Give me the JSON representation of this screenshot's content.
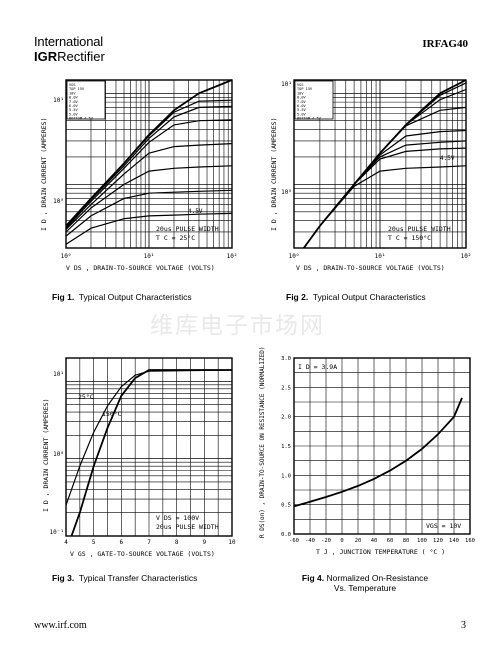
{
  "header": {
    "logo_line1": "International",
    "logo_line2_bold": "IGR",
    "logo_line2": "Rectifier",
    "part_number": "IRFAG40"
  },
  "watermark": "维库电子市场网",
  "footer": {
    "url": "www.irf.com",
    "page": "3"
  },
  "figures": [
    {
      "num": "Fig 1.",
      "caption": "Typical Output Characteristics",
      "ylabel": "I D , DRAIN CURRENT (AMPERES)",
      "xlabel": "V DS , DRAIN-TO-SOURCE VOLTAGE (VOLTS)",
      "vgs_legend": [
        "VGS",
        "TOP 15V",
        "10V",
        "8.0V",
        "7.0V",
        "6.0V",
        "5.5V",
        "5.0V",
        "BOTTOM 4.5V"
      ],
      "curve_label": "4.5V",
      "note1": "20us PULSE WIDTH",
      "note2": "T C = 25°C",
      "ticks_x": [
        "10⁰",
        "10¹",
        "10²"
      ],
      "ticks_y": [
        "10¹",
        "10⁰"
      ]
    },
    {
      "num": "Fig 2.",
      "caption": "Typical Output Characteristics",
      "ylabel": "I D , DRAIN CURRENT (AMPERES)",
      "xlabel": "V DS , DRAIN-TO-SOURCE VOLTAGE (VOLTS)",
      "vgs_legend": [
        "VGS",
        "TOP 15V",
        "10V",
        "8.0V",
        "7.0V",
        "6.0V",
        "5.5V",
        "5.0V",
        "BOTTOM 4.5V"
      ],
      "curve_label": "4.5V",
      "note1": "20us PULSE WIDTH",
      "note2": "T C = 150°C",
      "ticks_x": [
        "10⁰",
        "10¹",
        "10²"
      ],
      "ticks_y": [
        "10¹",
        "10⁰"
      ]
    },
    {
      "num": "Fig 3.",
      "caption": "Typical Transfer Characteristics",
      "ylabel": "I D , DRAIN CURRENT (AMPERES)",
      "xlabel": "V GS , GATE-TO-SOURCE VOLTAGE (VOLTS)",
      "label_a": "25°C",
      "label_b": "150°C",
      "note1": "V DS = 100V",
      "note2": "20us PULSE WIDTH",
      "ticks_x": [
        "4",
        "5",
        "6",
        "7",
        "8",
        "9",
        "10"
      ],
      "ticks_y": [
        "10¹",
        "10⁰",
        "10⁻¹"
      ]
    },
    {
      "num": "Fig 4.",
      "caption": "Normalized On-Resistance",
      "caption2": "Vs. Temperature",
      "ylabel": "R DS(on) , DRAIN-TO-SOURCE ON RESISTANCE (NORMALIZED)",
      "xlabel": "T J , JUNCTION TEMPERATURE ( °C )",
      "note_top": "I D = 3.9A",
      "note_bot": "VGS = 10V",
      "ticks_x": [
        "-60",
        "-40",
        "-20",
        "0",
        "20",
        "40",
        "60",
        "80",
        "100",
        "120",
        "140",
        "160"
      ],
      "ticks_y": [
        "3.0",
        "2.5",
        "2.0",
        "1.5",
        "1.0",
        "0.5",
        "0.0"
      ]
    }
  ],
  "chart_data": [
    {
      "type": "line",
      "scale": "log-log",
      "xlim": [
        1,
        100
      ],
      "ylim": [
        0.2,
        14
      ],
      "series": [
        {
          "name": "TOP 15V",
          "x": [
            1,
            2,
            5,
            10,
            20,
            40,
            100
          ],
          "y": [
            0.35,
            0.7,
            1.7,
            3.5,
            6.5,
            10,
            14
          ]
        },
        {
          "name": "10V",
          "x": [
            1,
            2,
            5,
            10,
            20,
            40,
            100
          ],
          "y": [
            0.35,
            0.7,
            1.7,
            3.4,
            6.2,
            8.2,
            8.4
          ]
        },
        {
          "name": "8.0V",
          "x": [
            1,
            2,
            5,
            10,
            20,
            40,
            100
          ],
          "y": [
            0.34,
            0.68,
            1.6,
            3.2,
            5.5,
            7.0,
            7.2
          ]
        },
        {
          "name": "7.0V",
          "x": [
            1,
            2,
            5,
            10,
            20,
            40,
            100
          ],
          "y": [
            0.33,
            0.65,
            1.5,
            2.9,
            4.5,
            5.0,
            5.1
          ]
        },
        {
          "name": "6.0V",
          "x": [
            1,
            2,
            5,
            10,
            20,
            40,
            100
          ],
          "y": [
            0.32,
            0.6,
            1.3,
            2.2,
            2.6,
            2.7,
            2.8
          ]
        },
        {
          "name": "5.5V",
          "x": [
            1,
            2,
            5,
            10,
            20,
            40,
            100
          ],
          "y": [
            0.3,
            0.55,
            1.0,
            1.4,
            1.5,
            1.55,
            1.6
          ]
        },
        {
          "name": "5.0V",
          "x": [
            1,
            2,
            5,
            10,
            20,
            40,
            100
          ],
          "y": [
            0.27,
            0.45,
            0.7,
            0.8,
            0.82,
            0.84,
            0.86
          ]
        },
        {
          "name": "BOTTOM 4.5V",
          "x": [
            1,
            2,
            5,
            10,
            20,
            40,
            100
          ],
          "y": [
            0.22,
            0.33,
            0.42,
            0.45,
            0.46,
            0.47,
            0.48
          ]
        }
      ]
    },
    {
      "type": "line",
      "scale": "log-log",
      "xlim": [
        1,
        100
      ],
      "ylim": [
        0.2,
        14
      ],
      "series": [
        {
          "name": "TOP 15V",
          "x": [
            1.3,
            2,
            5,
            10,
            20,
            50,
            100
          ],
          "y": [
            0.2,
            0.35,
            1.0,
            2.2,
            4.5,
            10,
            14
          ]
        },
        {
          "name": "10V",
          "x": [
            1.3,
            2,
            5,
            10,
            20,
            50,
            100
          ],
          "y": [
            0.2,
            0.35,
            1.0,
            2.2,
            4.5,
            9.5,
            13
          ]
        },
        {
          "name": "8.0V",
          "x": [
            1.3,
            2,
            5,
            10,
            20,
            50,
            100
          ],
          "y": [
            0.2,
            0.35,
            1.0,
            2.2,
            4.5,
            8.5,
            11
          ]
        },
        {
          "name": "7.0V",
          "x": [
            1.3,
            2,
            5,
            10,
            20,
            50,
            100
          ],
          "y": [
            0.2,
            0.35,
            1.0,
            2.2,
            4.4,
            6.5,
            7.0
          ]
        },
        {
          "name": "6.0V",
          "x": [
            1.3,
            2,
            5,
            10,
            20,
            50,
            100
          ],
          "y": [
            0.2,
            0.35,
            1.0,
            2.1,
            3.4,
            3.8,
            3.9
          ]
        },
        {
          "name": "5.5V",
          "x": [
            1.3,
            2,
            5,
            10,
            20,
            50,
            100
          ],
          "y": [
            0.2,
            0.35,
            1.0,
            2.0,
            2.7,
            2.9,
            3.0
          ]
        },
        {
          "name": "5.0V",
          "x": [
            1.3,
            2,
            5,
            10,
            20,
            50,
            100
          ],
          "y": [
            0.2,
            0.35,
            1.0,
            1.9,
            2.3,
            2.45,
            2.5
          ]
        },
        {
          "name": "BOTTOM 4.5V",
          "x": [
            1.3,
            2,
            5,
            10,
            20,
            50,
            100
          ],
          "y": [
            0.2,
            0.35,
            0.95,
            1.4,
            1.5,
            1.55,
            1.6
          ]
        }
      ]
    },
    {
      "type": "line",
      "scale": "log-y",
      "xlim": [
        4,
        10
      ],
      "ylim": [
        0.1,
        20
      ],
      "series": [
        {
          "name": "25°C",
          "x": [
            4.2,
            4.5,
            5.0,
            5.5,
            6.0,
            6.5,
            7.0,
            10
          ],
          "y": [
            0.1,
            0.2,
            0.8,
            2.5,
            6.5,
            11,
            14,
            14
          ]
        },
        {
          "name": "150°C",
          "x": [
            4.0,
            4.5,
            5.0,
            5.5,
            6.0,
            6.5,
            7.0,
            10
          ],
          "y": [
            0.25,
            0.8,
            2.2,
            4.8,
            8.5,
            12,
            13.5,
            14
          ]
        }
      ]
    },
    {
      "type": "line",
      "xlim": [
        -60,
        160
      ],
      "ylim": [
        0,
        3.0
      ],
      "series": [
        {
          "x": [
            -60,
            -40,
            -20,
            0,
            20,
            40,
            60,
            80,
            100,
            120,
            140,
            150
          ],
          "y": [
            0.47,
            0.55,
            0.63,
            0.72,
            0.82,
            0.94,
            1.08,
            1.25,
            1.45,
            1.7,
            2.0,
            2.32
          ]
        }
      ]
    }
  ]
}
